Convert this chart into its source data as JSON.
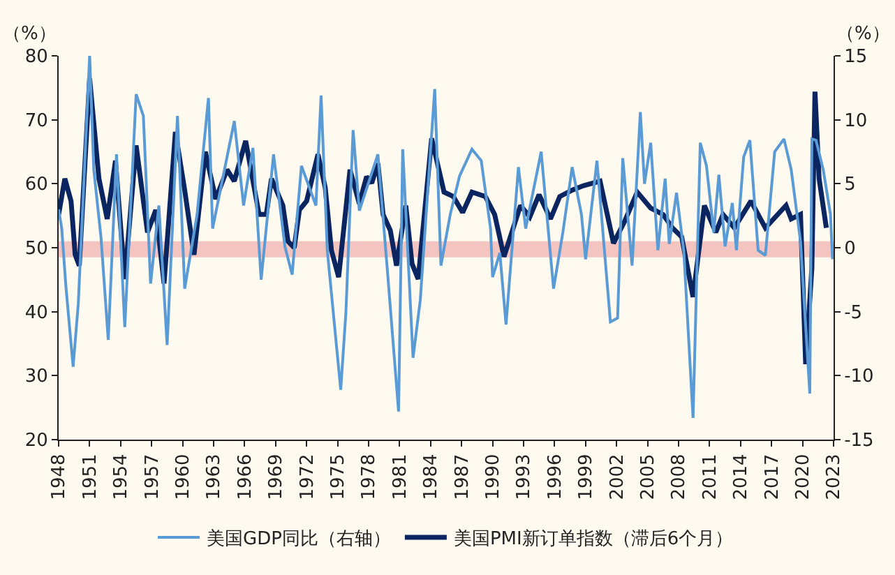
{
  "chart_data": {
    "type": "line",
    "ylabel": "（%）",
    "y2label": "（%）",
    "xlim": [
      1948,
      2023
    ],
    "xticks": [
      1948,
      1951,
      1954,
      1957,
      1960,
      1963,
      1966,
      1969,
      1972,
      1975,
      1978,
      1981,
      1984,
      1987,
      1990,
      1993,
      1996,
      1999,
      2002,
      2005,
      2008,
      2011,
      2014,
      2017,
      2020,
      2023
    ],
    "ylim": [
      20,
      80
    ],
    "yticks": [
      20,
      30,
      40,
      50,
      60,
      70,
      80
    ],
    "y2lim": [
      -15,
      15
    ],
    "y2ticks": [
      -15,
      -10,
      -5,
      0,
      5,
      10,
      15
    ],
    "grid": false,
    "legend": "bottom",
    "marker": "none",
    "line_style": "solid",
    "bands": [
      {
        "axis": "y",
        "from": 48.5,
        "to": 51,
        "color": "#f4c5c0"
      }
    ],
    "series": [
      {
        "name": "美国GDP同比（右轴）",
        "color": "#5b9bd5",
        "axis": "y2",
        "x": [
          1948.0,
          1948.3,
          1948.7,
          1949.4,
          1949.9,
          1951.0,
          1951.4,
          1952.1,
          1952.8,
          1953.6,
          1954.4,
          1955.5,
          1956.2,
          1956.9,
          1957.7,
          1958.5,
          1959.5,
          1960.2,
          1961.4,
          1962.5,
          1962.9,
          1965.0,
          1965.9,
          1966.8,
          1967.6,
          1968.8,
          1969.9,
          1970.6,
          1971.5,
          1972.9,
          1973.4,
          1974.0,
          1975.3,
          1975.8,
          1976.5,
          1977.1,
          1978.9,
          1979.8,
          1980.9,
          1981.3,
          1982.3,
          1983.0,
          1984.4,
          1985.0,
          1985.9,
          1986.8,
          1988.0,
          1988.9,
          1989.8,
          1990.0,
          1990.7,
          1991.3,
          1992.5,
          1993.2,
          1994.7,
          1995.9,
          1996.8,
          1997.7,
          1998.6,
          1999.0,
          2000.1,
          2001.4,
          2002.1,
          2002.6,
          2003.5,
          2004.3,
          2004.7,
          2005.3,
          2006.0,
          2006.7,
          2007.1,
          2007.8,
          2008.5,
          2009.4,
          2009.8,
          2010.1,
          2010.7,
          2011.4,
          2011.9,
          2012.5,
          2013.2,
          2013.6,
          2014.3,
          2014.9,
          2015.7,
          2016.4,
          2017.3,
          2018.2,
          2018.9,
          2019.8,
          2020.7,
          2020.9,
          2021.3,
          2022.0,
          2022.7,
          2022.9
        ],
        "values": [
          3.0,
          1.5,
          -3.0,
          -9.3,
          -4.4,
          15.0,
          6.1,
          0.8,
          -7.2,
          7.3,
          -6.2,
          12.0,
          10.3,
          -2.8,
          3.3,
          -7.6,
          10.3,
          -3.2,
          2.6,
          11.7,
          1.5,
          9.9,
          3.3,
          7.8,
          -2.5,
          7.3,
          0.1,
          -2.1,
          6.4,
          3.3,
          11.9,
          -0.2,
          -11.1,
          -5.1,
          9.2,
          2.9,
          7.3,
          -1.6,
          -12.8,
          7.7,
          -8.6,
          -4.1,
          12.4,
          -1.4,
          2.6,
          5.6,
          7.7,
          6.8,
          1.5,
          -2.3,
          -0.4,
          -6.0,
          6.3,
          1.5,
          7.5,
          -3.2,
          1.2,
          6.3,
          2.6,
          -0.9,
          6.8,
          -5.8,
          -5.5,
          7.0,
          -1.4,
          10.6,
          5.0,
          8.2,
          -0.2,
          5.4,
          0.3,
          4.3,
          -0.2,
          -13.3,
          -0.9,
          8.2,
          6.4,
          1.2,
          5.7,
          0.1,
          3.5,
          -0.2,
          7.1,
          8.4,
          -0.2,
          -0.6,
          7.5,
          8.5,
          6.1,
          0.5,
          -11.4,
          8.5,
          8.4,
          6.1,
          2.6,
          -0.9
        ]
      },
      {
        "name": "美国PMI新订单指数（滞后6个月）",
        "color": "#0b2560",
        "x": [
          1948.0,
          1948.6,
          1949.2,
          1949.6,
          1950.0,
          1951.0,
          1951.9,
          1952.7,
          1953.5,
          1954.4,
          1955.5,
          1956.6,
          1957.4,
          1958.2,
          1959.3,
          1960.2,
          1961.1,
          1962.2,
          1963.2,
          1964.3,
          1965.0,
          1966.1,
          1967.4,
          1968.1,
          1968.6,
          1969.7,
          1970.2,
          1970.8,
          1971.3,
          1972.0,
          1973.1,
          1973.8,
          1974.4,
          1975.1,
          1976.2,
          1977.1,
          1977.8,
          1978.3,
          1978.9,
          1979.4,
          1980.1,
          1980.7,
          1981.6,
          1982.2,
          1982.8,
          1984.1,
          1985.3,
          1986.2,
          1987.1,
          1988.0,
          1989.3,
          1990.2,
          1991.1,
          1992.7,
          1993.6,
          1994.5,
          1995.6,
          1996.5,
          1997.7,
          1998.8,
          2000.4,
          2001.7,
          2002.8,
          2004.0,
          2005.3,
          2006.5,
          2007.4,
          2008.3,
          2009.4,
          2010.5,
          2011.6,
          2012.3,
          2013.4,
          2015.0,
          2016.4,
          2018.4,
          2018.9,
          2019.8,
          2020.3,
          2020.9,
          2021.2,
          2021.6,
          2022.3
        ],
        "values": [
          55.2,
          60.8,
          57.3,
          48.9,
          47.2,
          76.5,
          60.8,
          54.5,
          63.6,
          45.1,
          66.0,
          52.4,
          55.9,
          44.4,
          68.1,
          59.0,
          48.9,
          65.0,
          57.6,
          62.2,
          60.4,
          66.7,
          55.2,
          55.2,
          60.8,
          56.6,
          51.0,
          50.0,
          55.9,
          57.3,
          64.6,
          59.4,
          49.6,
          45.4,
          62.2,
          56.9,
          61.1,
          60.1,
          63.2,
          55.2,
          52.7,
          47.2,
          56.6,
          47.5,
          45.1,
          67.1,
          58.7,
          58.0,
          55.5,
          58.7,
          58.0,
          55.2,
          48.6,
          56.6,
          54.8,
          58.3,
          54.5,
          58.0,
          59.0,
          59.7,
          60.4,
          50.7,
          54.2,
          58.7,
          56.2,
          55.2,
          53.1,
          51.7,
          42.3,
          56.6,
          52.4,
          55.2,
          53.1,
          57.3,
          53.1,
          56.6,
          54.5,
          55.2,
          31.8,
          46.8,
          74.4,
          60.8,
          53.1
        ]
      }
    ]
  }
}
